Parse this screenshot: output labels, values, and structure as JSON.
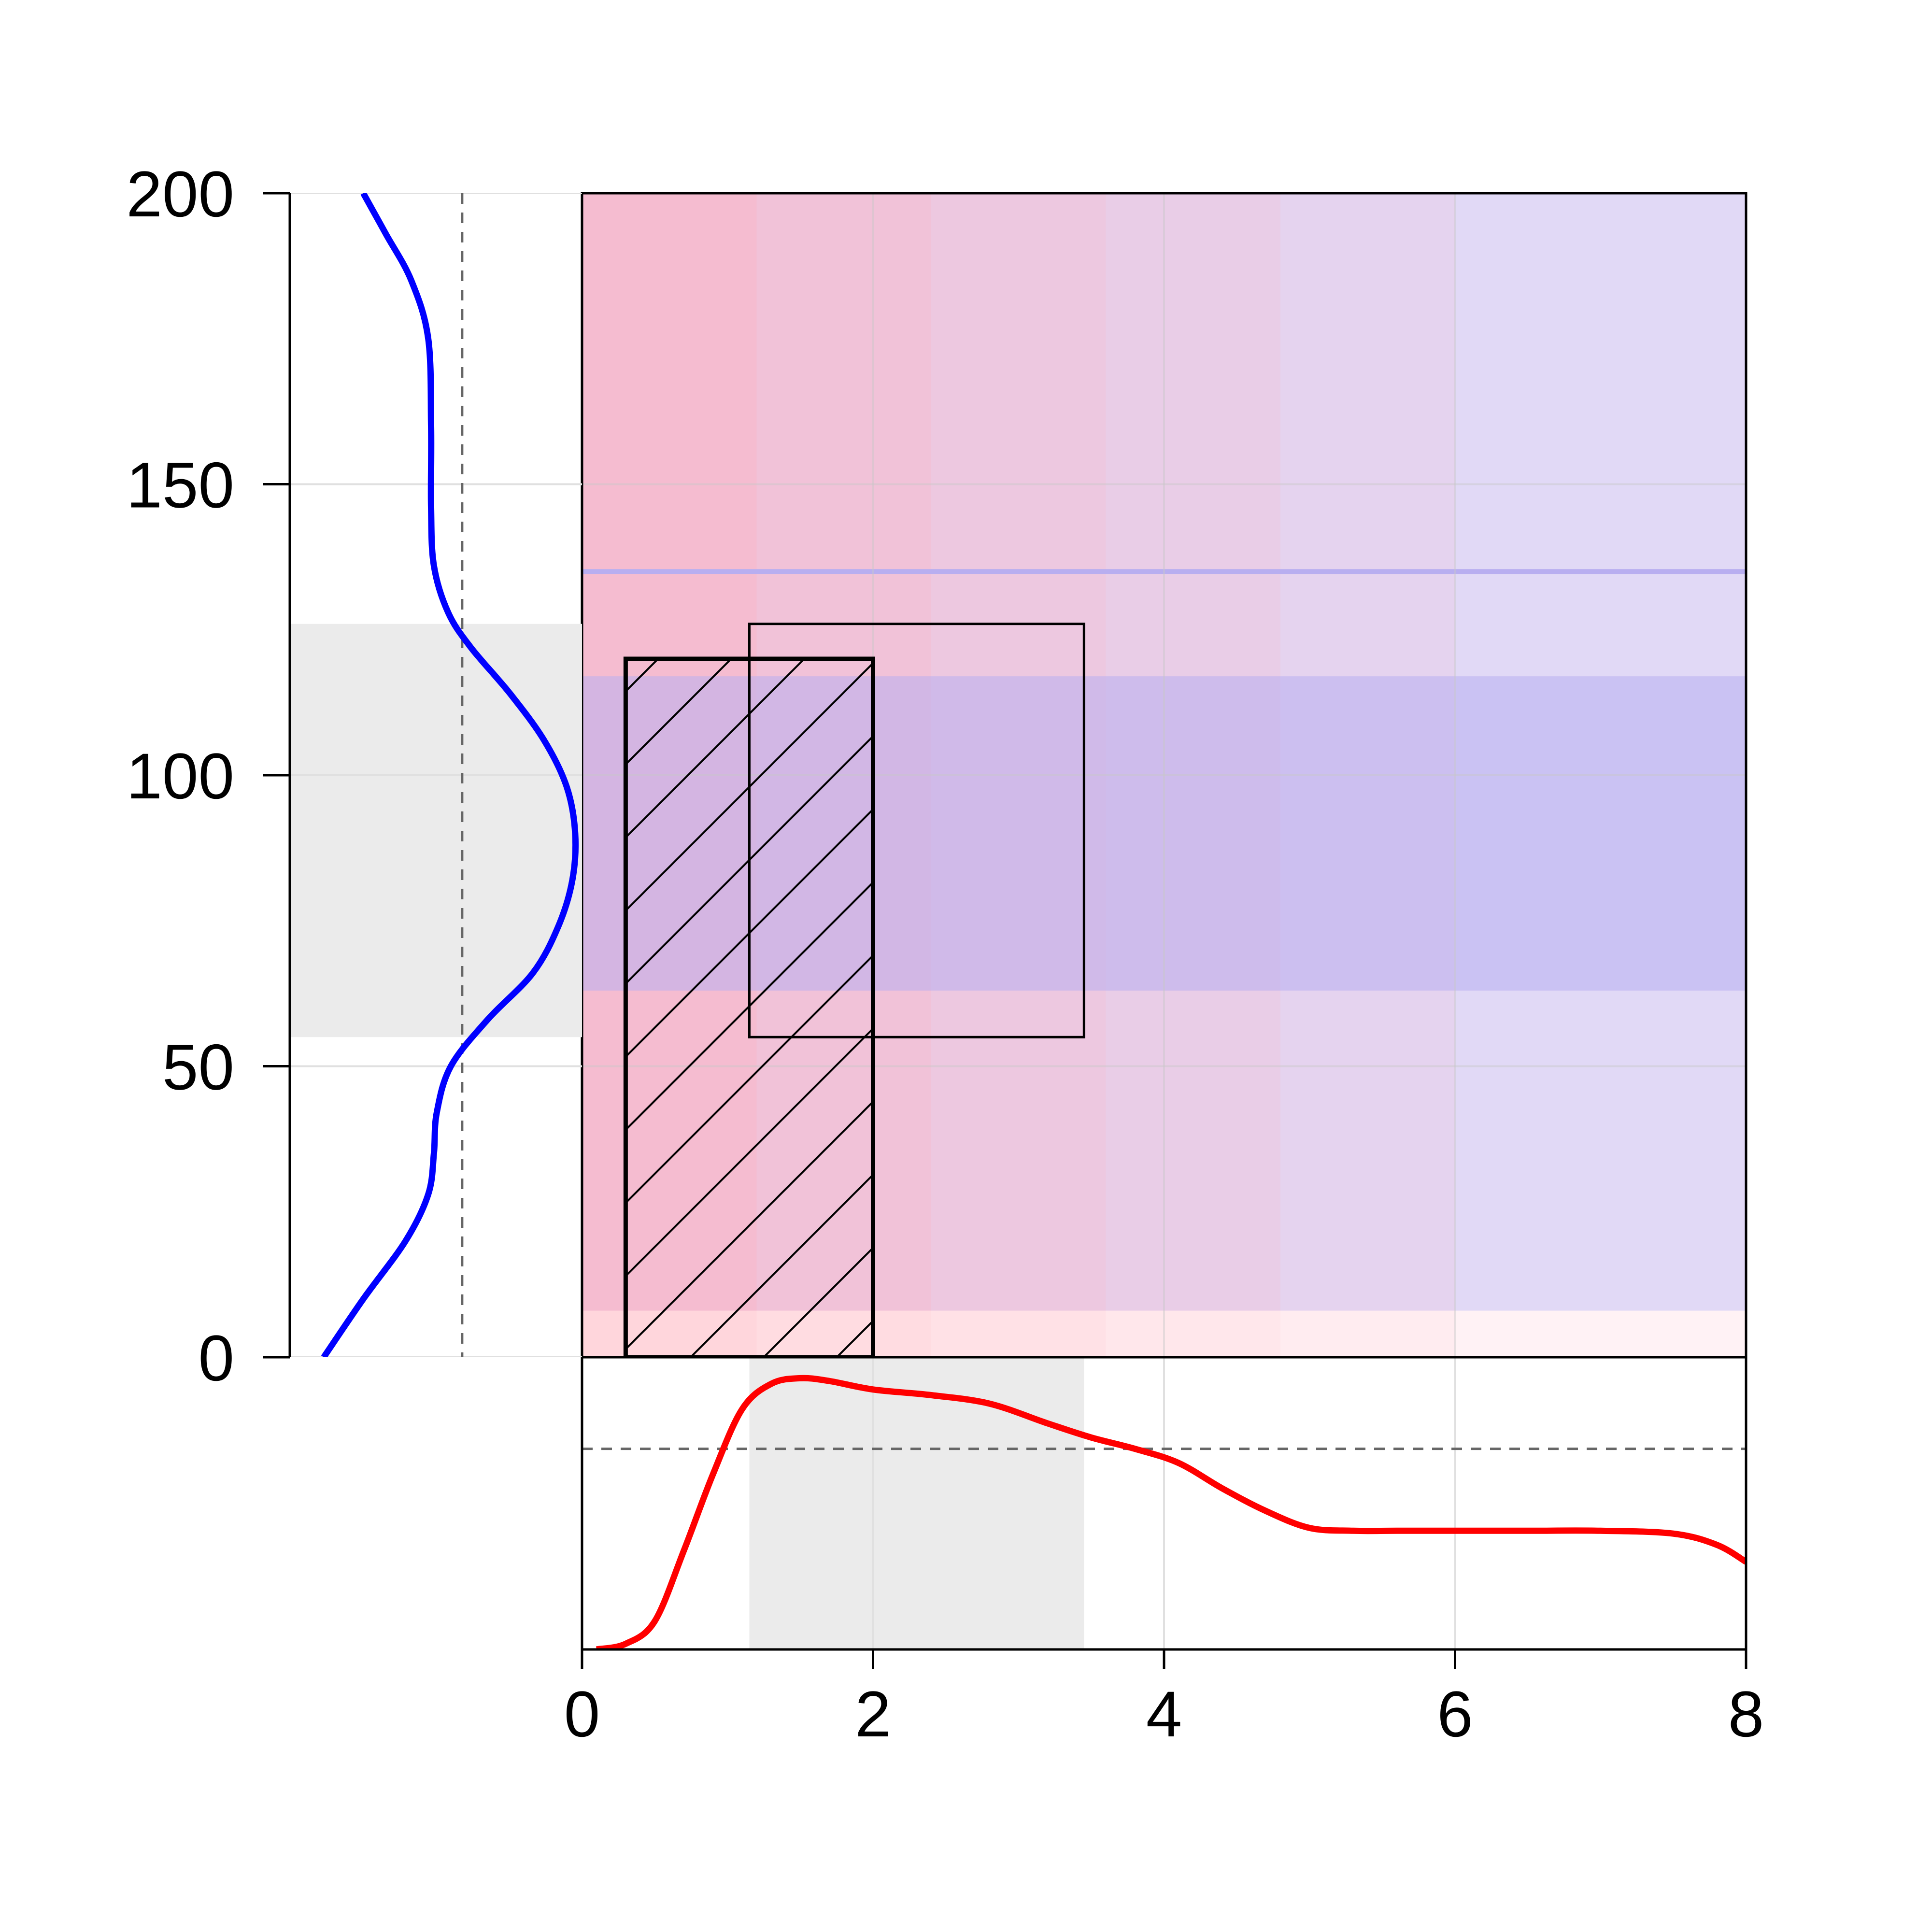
{
  "chart_data": {
    "type": "area",
    "xlim": [
      0,
      8
    ],
    "ylim": [
      0,
      200
    ],
    "x_ticks": [
      "0",
      "2",
      "4",
      "6",
      "8"
    ],
    "y_ticks": [
      "0",
      "50",
      "100",
      "150",
      "200"
    ],
    "grid": true,
    "colors": {
      "x_density": "#ff0000",
      "y_density": "#0000ff",
      "region_low": "#f3b0c8",
      "region_high": "#dcd2f5",
      "band": "#b8aef0",
      "hatch": "#000000",
      "margin_shade": "#ebebeb"
    },
    "x_density": {
      "x": [
        0.1,
        0.3,
        0.5,
        0.7,
        0.9,
        1.1,
        1.3,
        1.5,
        1.7,
        2.0,
        2.4,
        2.8,
        3.2,
        3.5,
        3.8,
        4.1,
        4.4,
        4.7,
        5.0,
        5.3,
        5.6,
        6.0,
        6.5,
        7.0,
        7.5,
        7.8,
        8.0
      ],
      "y": [
        0.0,
        0.02,
        0.1,
        0.35,
        0.62,
        0.85,
        0.94,
        0.96,
        0.95,
        0.92,
        0.9,
        0.87,
        0.8,
        0.75,
        0.71,
        0.66,
        0.57,
        0.49,
        0.43,
        0.42,
        0.42,
        0.42,
        0.42,
        0.42,
        0.41,
        0.37,
        0.31
      ],
      "mean_line": 0.71,
      "shade_range": [
        1.15,
        3.45
      ]
    },
    "y_density": {
      "y": [
        0,
        10,
        20,
        28,
        35,
        42,
        50,
        58,
        66,
        74,
        82,
        90,
        98,
        106,
        114,
        122,
        128,
        136,
        146,
        160,
        175,
        185,
        193,
        200
      ],
      "d": [
        0.12,
        0.26,
        0.41,
        0.49,
        0.51,
        0.52,
        0.57,
        0.7,
        0.86,
        0.95,
        1.0,
        1.01,
        0.98,
        0.9,
        0.78,
        0.64,
        0.56,
        0.51,
        0.5,
        0.5,
        0.49,
        0.43,
        0.34,
        0.26
      ],
      "mean_line": 0.61,
      "shade_range": [
        55,
        126
      ]
    },
    "regions": {
      "color_split_x": [
        0,
        1.2,
        2.4,
        3.6,
        4.8,
        6.0,
        8.0
      ],
      "band_y": [
        63,
        117
      ],
      "line_y": 135,
      "bottom_strip_y": [
        0,
        8
      ]
    },
    "rectangles": [
      {
        "name": "hatched",
        "x": [
          0.3,
          2.0
        ],
        "y": [
          0,
          120
        ]
      },
      {
        "name": "outline",
        "x": [
          1.15,
          3.45
        ],
        "y": [
          55,
          126
        ]
      }
    ]
  }
}
